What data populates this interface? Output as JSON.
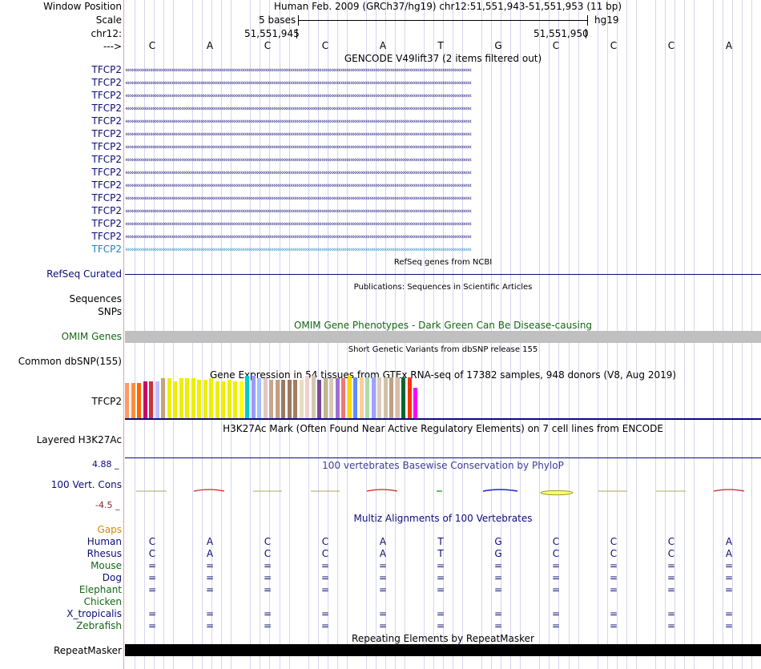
{
  "header": {
    "window_position_label": "Window Position",
    "assembly_text": "Human Feb. 2009 (GRCh37/hg19)   chr12:51,551,943-51,551,953 (11 bp)",
    "scale_label": "Scale",
    "scale_text": "5 bases",
    "scale_assembly": "hg19",
    "chrom_label": "chr12:",
    "pos_left": "51,551,945",
    "pos_right": "51,551,950",
    "strand_label": "--->"
  },
  "bases": [
    "C",
    "A",
    "C",
    "C",
    "A",
    "T",
    "G",
    "C",
    "C",
    "C",
    "A"
  ],
  "gencode": {
    "title": "GENCODE V49lift37 (2 items filtered out)",
    "items": [
      {
        "label": "TFCP2",
        "style": "dark"
      },
      {
        "label": "TFCP2",
        "style": "dark"
      },
      {
        "label": "TFCP2",
        "style": "dark"
      },
      {
        "label": "TFCP2",
        "style": "dark"
      },
      {
        "label": "TFCP2",
        "style": "dark"
      },
      {
        "label": "TFCP2",
        "style": "dark"
      },
      {
        "label": "TFCP2",
        "style": "dark"
      },
      {
        "label": "TFCP2",
        "style": "dark"
      },
      {
        "label": "TFCP2",
        "style": "dark"
      },
      {
        "label": "TFCP2",
        "style": "dark"
      },
      {
        "label": "TFCP2",
        "style": "dark"
      },
      {
        "label": "TFCP2",
        "style": "dark"
      },
      {
        "label": "TFCP2",
        "style": "dark"
      },
      {
        "label": "TFCP2",
        "style": "dark"
      },
      {
        "label": "TFCP2",
        "style": "light"
      }
    ]
  },
  "refseq": {
    "title": "RefSeq genes from NCBI",
    "label": "RefSeq Curated"
  },
  "publications": {
    "title": "Publications: Sequences in Scientific Articles",
    "label1": "Sequences",
    "label2": "SNPs"
  },
  "omim": {
    "title": "OMIM Gene Phenotypes - Dark Green Can Be Disease-causing",
    "label": "OMIM Genes"
  },
  "dbsnp": {
    "title": "Short Genetic Variants from dbSNP release 155",
    "label": "Common dbSNP(155)"
  },
  "gtex": {
    "title": "Gene Expression in 54 tissues from GTEx RNA-seq of 17382 samples, 948 donors (V8, Aug 2019)",
    "label": "TFCP2",
    "colors": [
      "#ff9966",
      "#ff8c3c",
      "#ff6600",
      "#cc0066",
      "#cc3333",
      "#c0c0ff",
      "#c6a17a",
      "#eeee00",
      "#eeee00",
      "#eeee00",
      "#eeee00",
      "#eeee00",
      "#eeee00",
      "#eeee00",
      "#eeee00",
      "#eeee00",
      "#eeee00",
      "#eeee00",
      "#eeee00",
      "#ffff00",
      "#00cccc",
      "#9a9aff",
      "#a0c0ff",
      "#e3c6c6",
      "#c7a58e",
      "#c0a080",
      "#9b7a60",
      "#9b7a60",
      "#a37d5f",
      "#e7ddc3",
      "#f3cdcd",
      "#d5c8b0",
      "#7a4a9a",
      "#c2b490",
      "#d9c9b1",
      "#9e70d0",
      "#ee7777",
      "#ffd700",
      "#5c8dff",
      "#ffcc99",
      "#aaddaa",
      "#a0a0ff",
      "#d8ccbb",
      "#d1c2a8",
      "#c0a080",
      "#d8bca8",
      "#006633",
      "#ff3300",
      "#ff00ff"
    ],
    "values": [
      0.55,
      0.55,
      0.55,
      0.58,
      0.58,
      0.58,
      0.62,
      0.62,
      0.58,
      0.62,
      0.62,
      0.62,
      0.6,
      0.6,
      0.62,
      0.58,
      0.58,
      0.6,
      0.58,
      0.58,
      0.66,
      0.66,
      0.62,
      0.62,
      0.6,
      0.6,
      0.6,
      0.6,
      0.6,
      0.6,
      0.66,
      0.66,
      0.6,
      0.62,
      0.62,
      0.62,
      0.62,
      0.66,
      0.64,
      0.64,
      0.64,
      0.64,
      0.64,
      0.64,
      0.64,
      0.64,
      0.64,
      0.64,
      0.48
    ]
  },
  "h3k27ac": {
    "title": "H3K27Ac Mark (Often Found Near Active Regulatory Elements) on 7 cell lines from ENCODE",
    "label": "Layered H3K27Ac"
  },
  "phylop": {
    "title": "100 vertebrates Basewise Conservation by PhyloP",
    "label": "100 Vert. Cons",
    "max": "4.88 _",
    "min": "-4.5 _"
  },
  "multiz": {
    "title": "Multiz Alignments of 100 Vertebrates",
    "species": [
      {
        "name": "Gaps",
        "style": "orange",
        "row": "none"
      },
      {
        "name": "Human",
        "style": "dark",
        "row": "bases"
      },
      {
        "name": "Rhesus",
        "style": "dark",
        "row": "bases"
      },
      {
        "name": "Mouse",
        "style": "green",
        "row": "eq"
      },
      {
        "name": "Dog",
        "style": "dark",
        "row": "eq"
      },
      {
        "name": "Elephant",
        "style": "green",
        "row": "eq"
      },
      {
        "name": "Chicken",
        "style": "green",
        "row": "none"
      },
      {
        "name": "X_tropicalis",
        "style": "dark",
        "row": "eq"
      },
      {
        "name": "Zebrafish",
        "style": "green",
        "row": "eq"
      }
    ],
    "eq_symbol": "="
  },
  "repeatmasker": {
    "title": "Repeating Elements by RepeatMasker",
    "label": "RepeatMasker"
  }
}
